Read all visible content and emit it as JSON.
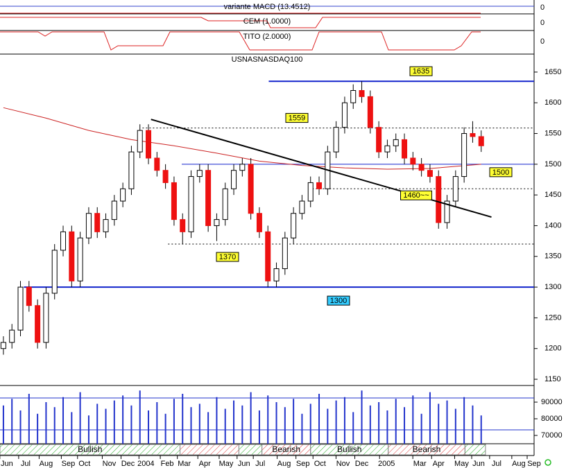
{
  "chart_data": {
    "type": "candlestick",
    "title": "USNASNASDAQ100",
    "panels": [
      {
        "label": "variante MACD (13.4512)",
        "value": 0
      },
      {
        "label": "CEM (1.0000)",
        "value": 0
      },
      {
        "label": "TITO (2.0000)",
        "value": 0
      }
    ],
    "open": [
      1200,
      1210,
      1230,
      1300,
      1270,
      1210,
      1290,
      1360,
      1390,
      1310,
      1380,
      1420,
      1390,
      1410,
      1440,
      1460,
      1520,
      1555,
      1510,
      1490,
      1470,
      1410,
      1390,
      1480,
      1490,
      1400,
      1410,
      1460,
      1490,
      1500,
      1420,
      1390,
      1310,
      1330,
      1380,
      1420,
      1440,
      1470,
      1460,
      1520,
      1560,
      1600,
      1620,
      1610,
      1560,
      1520,
      1530,
      1540,
      1510,
      1500,
      1490,
      1480,
      1405,
      1440,
      1480,
      1550,
      1545
    ],
    "high": [
      1220,
      1240,
      1310,
      1310,
      1280,
      1300,
      1370,
      1400,
      1400,
      1390,
      1430,
      1430,
      1420,
      1450,
      1470,
      1530,
      1565,
      1565,
      1520,
      1500,
      1480,
      1420,
      1490,
      1500,
      1500,
      1420,
      1470,
      1500,
      1510,
      1510,
      1430,
      1400,
      1340,
      1390,
      1430,
      1450,
      1480,
      1480,
      1530,
      1570,
      1610,
      1630,
      1635,
      1620,
      1570,
      1540,
      1550,
      1550,
      1520,
      1510,
      1500,
      1490,
      1450,
      1490,
      1560,
      1570,
      1555
    ],
    "low": [
      1190,
      1200,
      1220,
      1260,
      1200,
      1200,
      1280,
      1350,
      1300,
      1300,
      1370,
      1380,
      1380,
      1400,
      1430,
      1450,
      1510,
      1500,
      1480,
      1460,
      1400,
      1370,
      1380,
      1470,
      1390,
      1375,
      1400,
      1450,
      1480,
      1410,
      1380,
      1300,
      1300,
      1320,
      1370,
      1410,
      1430,
      1450,
      1450,
      1510,
      1550,
      1590,
      1600,
      1550,
      1510,
      1510,
      1520,
      1500,
      1490,
      1480,
      1470,
      1395,
      1395,
      1430,
      1470,
      1535,
      1520
    ],
    "close": [
      1210,
      1230,
      1300,
      1270,
      1210,
      1290,
      1360,
      1390,
      1310,
      1380,
      1420,
      1390,
      1410,
      1440,
      1460,
      1520,
      1555,
      1510,
      1490,
      1470,
      1410,
      1390,
      1480,
      1490,
      1400,
      1410,
      1460,
      1490,
      1500,
      1420,
      1390,
      1310,
      1330,
      1380,
      1420,
      1440,
      1470,
      1460,
      1520,
      1560,
      1600,
      1620,
      1610,
      1560,
      1520,
      1530,
      1540,
      1510,
      1500,
      1490,
      1480,
      1405,
      1440,
      1480,
      1550,
      1545,
      1530
    ],
    "volume": [
      88000,
      92000,
      85000,
      95000,
      83000,
      90000,
      87000,
      93000,
      84000,
      96000,
      82000,
      89000,
      86000,
      91000,
      94000,
      88000,
      97000,
      85000,
      90000,
      83000,
      92000,
      95000,
      87000,
      89000,
      84000,
      93000,
      86000,
      91000,
      88000,
      96000,
      85000,
      94000,
      90000,
      87000,
      92000,
      83000,
      89000,
      95000,
      86000,
      91000,
      93000,
      84000,
      97000,
      88000,
      90000,
      85000,
      92000,
      87000,
      94000,
      83000,
      96000,
      89000,
      91000,
      86000,
      93000,
      88000,
      82000
    ],
    "up_color": "#ffffff",
    "down_color": "#ee1111",
    "ma": {
      "x": [
        0,
        5,
        10,
        15,
        20,
        25,
        30,
        35,
        40,
        45,
        50,
        56
      ],
      "values": [
        1592,
        1575,
        1555,
        1540,
        1530,
        1518,
        1505,
        1498,
        1494,
        1492,
        1493,
        1500
      ],
      "color": "#cc2222"
    },
    "trendline": {
      "x": [
        17.3,
        57.2
      ],
      "values": [
        1573,
        1414
      ],
      "color": "#000000"
    },
    "levels": [
      {
        "value": 1635,
        "label": "1635",
        "start": 31.1,
        "style": "solid",
        "label_color": "#ffff33"
      },
      {
        "value": 1559,
        "label": "1559",
        "start": 16.3,
        "style": "dotted",
        "label_color": "#ffff33"
      },
      {
        "value": 1500,
        "label": "1500",
        "start": 20.9,
        "style": "solid",
        "label_color": "#ffff33"
      },
      {
        "value": 1460,
        "label": "1460~~",
        "start": 35.8,
        "style": "dotted",
        "label_color": "#ffff33"
      },
      {
        "value": 1370,
        "label": "1370",
        "start": 19.3,
        "style": "dotted",
        "label_color": "#ffff33"
      },
      {
        "value": 1300,
        "label": "1300",
        "start": 2.4,
        "style": "solid",
        "label_color": "#33ccff"
      }
    ],
    "regimes": [
      {
        "label": "Bullish",
        "start": -0.4,
        "end": 20.7,
        "color": "#22aa22"
      },
      {
        "label": null,
        "start": 20.7,
        "end": 27.6,
        "color": "#dd3333"
      },
      {
        "label": null,
        "start": 27.6,
        "end": 30.3,
        "color": "#22aa22"
      },
      {
        "label": "Bearish",
        "start": 30.3,
        "end": 36.0,
        "color": "#dd3333"
      },
      {
        "label": "Bullish",
        "start": 36.0,
        "end": 45.1,
        "color": "#22aa22"
      },
      {
        "label": "Bearish",
        "start": 45.1,
        "end": 54.1,
        "color": "#dd3333"
      },
      {
        "label": null,
        "start": 54.1,
        "end": 56.5,
        "color": "#22aa22"
      }
    ],
    "xlim": [
      -0.4,
      62.2
    ],
    "xticks": [
      {
        "value": 0.4,
        "label": "Jun"
      },
      {
        "value": 2.6,
        "label": "Jul"
      },
      {
        "value": 5.0,
        "label": "Aug"
      },
      {
        "value": 7.6,
        "label": "Sep"
      },
      {
        "value": 9.5,
        "label": "Oct"
      },
      {
        "value": 12.4,
        "label": "Nov"
      },
      {
        "value": 14.6,
        "label": "Dec"
      },
      {
        "value": 16.7,
        "label": "2004"
      },
      {
        "value": 19.2,
        "label": "Feb"
      },
      {
        "value": 21.2,
        "label": "Mar"
      },
      {
        "value": 23.6,
        "label": "Apr"
      },
      {
        "value": 26.1,
        "label": "May"
      },
      {
        "value": 28.2,
        "label": "Jun"
      },
      {
        "value": 30.1,
        "label": "Jul"
      },
      {
        "value": 32.9,
        "label": "Aug"
      },
      {
        "value": 35.1,
        "label": "Sep"
      },
      {
        "value": 37.1,
        "label": "Oct"
      },
      {
        "value": 39.8,
        "label": "Nov"
      },
      {
        "value": 42.0,
        "label": "Dec"
      },
      {
        "value": 44.9,
        "label": "2005"
      },
      {
        "value": 48.8,
        "label": "Mar"
      },
      {
        "value": 51.0,
        "label": "Apr"
      },
      {
        "value": 53.7,
        "label": "May"
      },
      {
        "value": 55.7,
        "label": "Jun"
      },
      {
        "value": 57.8,
        "label": "Jul"
      },
      {
        "value": 60.4,
        "label": "Aug"
      },
      {
        "value": 62.2,
        "label": "Sep"
      }
    ],
    "ylim": [
      1141,
      1677
    ],
    "yticks": [
      1150,
      1200,
      1250,
      1300,
      1350,
      1400,
      1450,
      1500,
      1550,
      1600,
      1650
    ],
    "vlim": [
      65000,
      100000
    ],
    "vticks": [
      70000,
      80000,
      90000
    ],
    "volume_color": "#2233cc"
  }
}
